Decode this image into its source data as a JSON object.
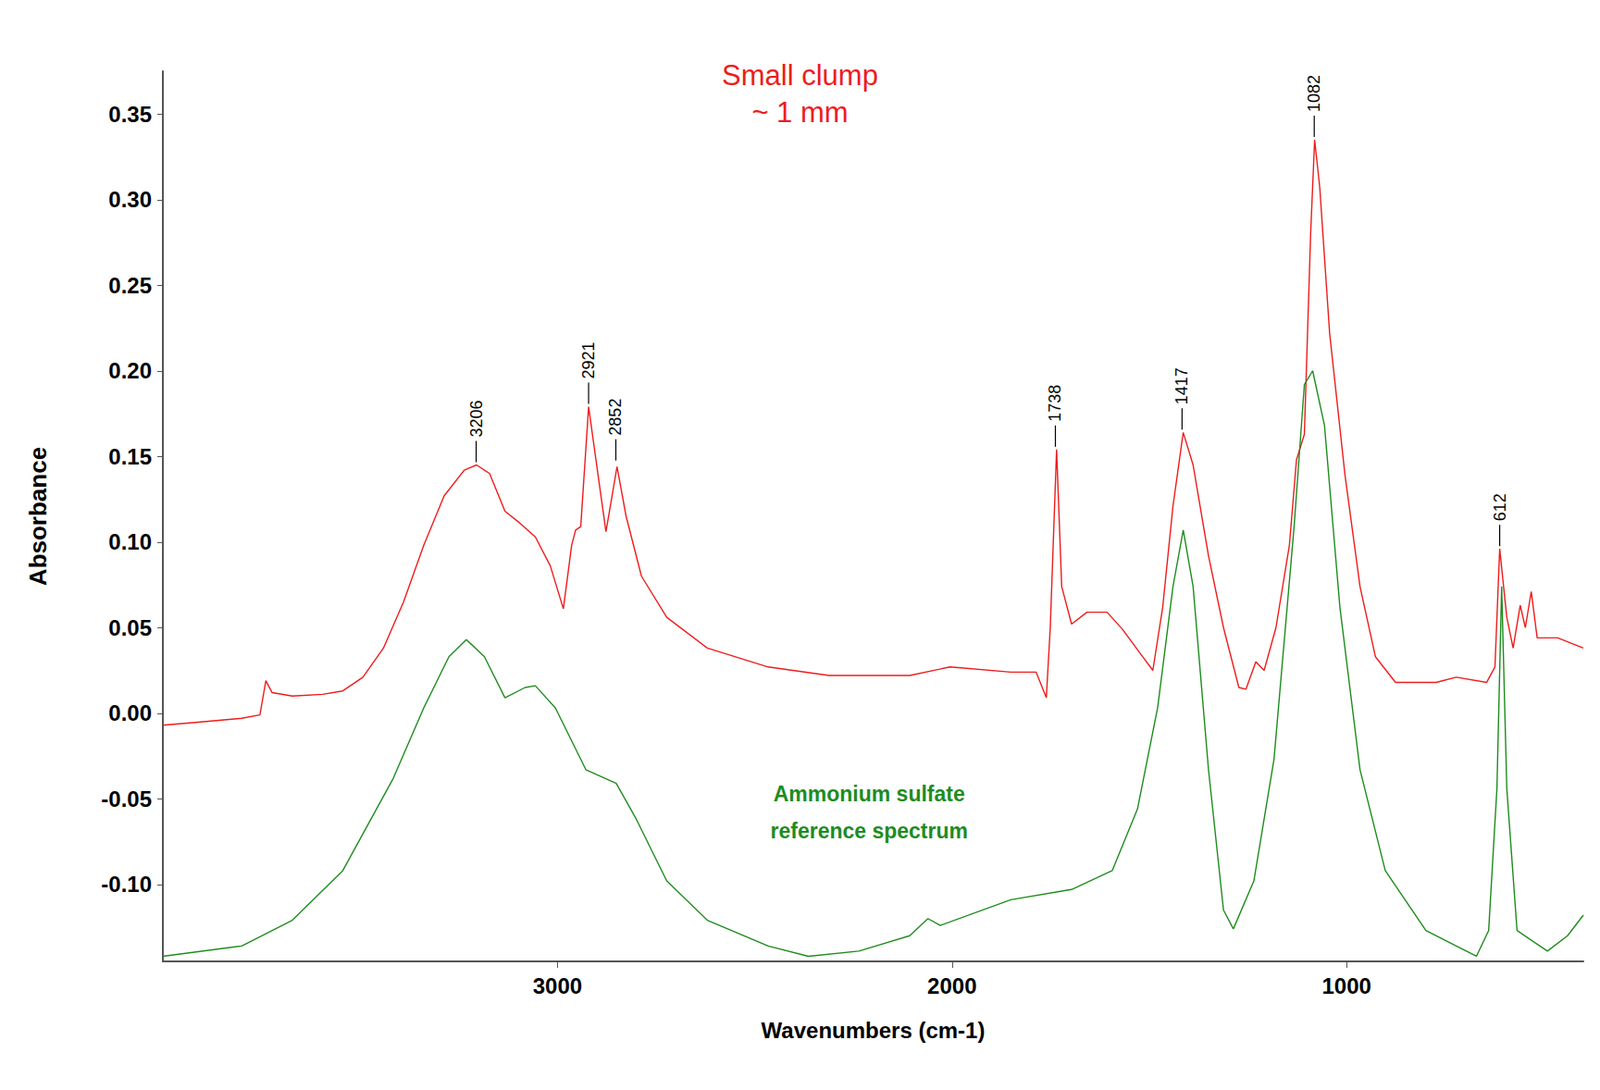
{
  "chart_data": {
    "type": "line",
    "title": "Small clump\n~ 1 mm",
    "x_label": "Wavenumbers (cm-1)",
    "y_label": "Absorbance",
    "xlim": [
      4000,
      400
    ],
    "xticks": [
      3000,
      2000,
      1000
    ],
    "ylim": [
      -0.145,
      0.375
    ],
    "yticks": [
      {
        "value": -0.1,
        "label": "-0.10"
      },
      -0.05,
      {
        "value": 0,
        "label": "0.00"
      },
      0.05,
      {
        "value": 0.1,
        "label": "0.10"
      },
      0.15,
      {
        "value": 0.2,
        "label": "0.20"
      },
      0.25,
      {
        "value": 0.3,
        "label": "0.30"
      },
      0.35
    ],
    "grid": false,
    "series": [
      {
        "name": "Small clump ~ 1 mm",
        "color": "#ee1c1c",
        "x": [
          4000,
          3897,
          3800,
          3754,
          3739,
          3723,
          3672,
          3595,
          3544,
          3493,
          3441,
          3390,
          3339,
          3287,
          3236,
          3205,
          3172,
          3133,
          3095,
          3056,
          3018,
          2985,
          2964,
          2954,
          2941,
          2921,
          2897,
          2877,
          2849,
          2826,
          2787,
          2723,
          2620,
          2466,
          2312,
          2107,
          2005,
          1851,
          1787,
          1761,
          1751,
          1735,
          1722,
          1697,
          1658,
          1607,
          1568,
          1517,
          1491,
          1466,
          1440,
          1414,
          1389,
          1350,
          1312,
          1273,
          1255,
          1230,
          1209,
          1179,
          1145,
          1127,
          1107,
          1091,
          1081,
          1068,
          1043,
          1004,
          966,
          927,
          876,
          773,
          722,
          645,
          624,
          612,
          594,
          578,
          560,
          547,
          532,
          517,
          465,
          400
        ],
        "values": [
          -0.007,
          -0.005,
          -0.003,
          -0.001,
          0.019,
          0.012,
          0.01,
          0.011,
          0.013,
          0.021,
          0.038,
          0.065,
          0.098,
          0.127,
          0.142,
          0.145,
          0.14,
          0.118,
          0.111,
          0.103,
          0.086,
          0.061,
          0.098,
          0.107,
          0.109,
          0.179,
          0.139,
          0.106,
          0.144,
          0.115,
          0.08,
          0.056,
          0.038,
          0.027,
          0.022,
          0.022,
          0.027,
          0.024,
          0.024,
          0.009,
          0.05,
          0.154,
          0.074,
          0.052,
          0.059,
          0.059,
          0.049,
          0.033,
          0.025,
          0.062,
          0.121,
          0.164,
          0.145,
          0.092,
          0.05,
          0.015,
          0.014,
          0.03,
          0.025,
          0.05,
          0.098,
          0.148,
          0.163,
          0.281,
          0.335,
          0.307,
          0.222,
          0.139,
          0.074,
          0.033,
          0.018,
          0.018,
          0.021,
          0.018,
          0.027,
          0.096,
          0.056,
          0.038,
          0.063,
          0.05,
          0.071,
          0.044,
          0.044,
          0.038
        ]
      },
      {
        "name": "Ammonium sulfate reference spectrum",
        "color": "#1e8c1e",
        "x": [
          4000,
          3800,
          3672,
          3544,
          3416,
          3339,
          3275,
          3231,
          3185,
          3133,
          3082,
          3056,
          3005,
          2928,
          2851,
          2800,
          2723,
          2620,
          2466,
          2364,
          2236,
          2107,
          2061,
          2030,
          1851,
          1697,
          1594,
          1530,
          1479,
          1440,
          1414,
          1389,
          1350,
          1312,
          1287,
          1235,
          1184,
          1133,
          1107,
          1086,
          1056,
          1017,
          966,
          902,
          799,
          671,
          640,
          619,
          607,
          594,
          568,
          491,
          440,
          400
        ],
        "values": [
          -0.142,
          -0.136,
          -0.121,
          -0.092,
          -0.038,
          0.003,
          0.033,
          0.043,
          0.033,
          0.009,
          0.015,
          0.016,
          0.003,
          -0.033,
          -0.041,
          -0.062,
          -0.098,
          -0.121,
          -0.136,
          -0.142,
          -0.139,
          -0.13,
          -0.12,
          -0.124,
          -0.109,
          -0.103,
          -0.092,
          -0.056,
          0.003,
          0.074,
          0.107,
          0.074,
          -0.033,
          -0.115,
          -0.126,
          -0.098,
          -0.027,
          0.109,
          0.192,
          0.2,
          0.168,
          0.062,
          -0.033,
          -0.092,
          -0.127,
          -0.142,
          -0.127,
          -0.044,
          0.074,
          -0.044,
          -0.127,
          -0.139,
          -0.13,
          -0.118
        ]
      }
    ],
    "peak_labels": [
      {
        "label": "3206",
        "x": 3206,
        "y": 0.145
      },
      {
        "label": "2921",
        "x": 2921,
        "y": 0.179
      },
      {
        "label": "2852",
        "x": 2852,
        "y": 0.146
      },
      {
        "label": "1738",
        "x": 1738,
        "y": 0.154
      },
      {
        "label": "1417",
        "x": 1417,
        "y": 0.164
      },
      {
        "label": "1082",
        "x": 1082,
        "y": 0.335
      },
      {
        "label": "612",
        "x": 612,
        "y": 0.096
      }
    ],
    "annotations": [
      {
        "text": "Ammonium sulfate\nreference spectrum",
        "x": 2210,
        "y": -0.058,
        "color": "#1e8c1e"
      }
    ]
  }
}
